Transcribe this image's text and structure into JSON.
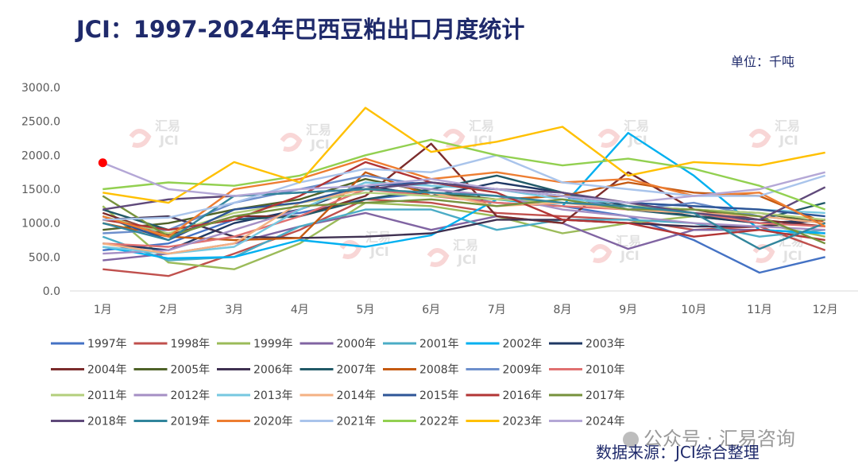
{
  "title": "JCI：1997-2024年巴西豆粕出口月度统计",
  "unit": "单位：千吨",
  "source": "数据来源：JCI综合整理",
  "watermark": {
    "text": "公众号 · 汇易咨询",
    "logo_text": "汇易",
    "logo_sub": "JCI"
  },
  "chart_data": {
    "type": "line",
    "title": "JCI：1997-2024年巴西豆粕出口月度统计",
    "ylabel": "千吨",
    "ylim": [
      0,
      3000
    ],
    "yticks": [
      "0.0",
      "500.0",
      "1000.0",
      "1500.0",
      "2000.0",
      "2500.0",
      "3000.0"
    ],
    "categories": [
      "1月",
      "2月",
      "3月",
      "4月",
      "5月",
      "6月",
      "7月",
      "8月",
      "9月",
      "10月",
      "11月",
      "12月"
    ],
    "grid": false,
    "legend": "bottom",
    "series": [
      {
        "name": "1997年",
        "color": "#4472c4",
        "values": [
          600,
          700,
          1050,
          1150,
          1350,
          1450,
          1300,
          1250,
          1100,
          750,
          270,
          500
        ]
      },
      {
        "name": "1998年",
        "color": "#c0504d",
        "values": [
          320,
          220,
          550,
          900,
          1350,
          1300,
          1150,
          1100,
          1050,
          900,
          950,
          600
        ]
      },
      {
        "name": "1999年",
        "color": "#9bbb59",
        "values": [
          1250,
          420,
          320,
          700,
          1300,
          1250,
          1100,
          850,
          1000,
          1100,
          1000,
          800
        ]
      },
      {
        "name": "2000年",
        "color": "#8064a2",
        "values": [
          450,
          550,
          700,
          950,
          1150,
          900,
          1100,
          1000,
          620,
          900,
          900,
          850
        ]
      },
      {
        "name": "2001年",
        "color": "#4bacc6",
        "values": [
          800,
          450,
          500,
          950,
          1200,
          1200,
          900,
          1050,
          1050,
          1000,
          800,
          900
        ]
      },
      {
        "name": "2002年",
        "color": "#00b0f0",
        "values": [
          650,
          480,
          500,
          750,
          650,
          820,
          1350,
          1250,
          2330,
          1700,
          900,
          850
        ]
      },
      {
        "name": "2003年",
        "color": "#1f3864",
        "values": [
          700,
          600,
          1000,
          1200,
          1550,
          1400,
          1600,
          1450,
          1250,
          1100,
          1000,
          1050
        ]
      },
      {
        "name": "2004年",
        "color": "#7b2c2c",
        "values": [
          1150,
          820,
          1100,
          1100,
          1400,
          2170,
          1100,
          1000,
          1750,
          1200,
          1050,
          950
        ]
      },
      {
        "name": "2005年",
        "color": "#4f6228",
        "values": [
          900,
          1000,
          1200,
          1350,
          1650,
          1450,
          1350,
          1300,
          1250,
          1200,
          1150,
          1000
        ]
      },
      {
        "name": "2006年",
        "color": "#3f3151",
        "values": [
          1050,
          1100,
          800,
          780,
          800,
          850,
          1050,
          1050,
          1000,
          950,
          950,
          1050
        ]
      },
      {
        "name": "2007年",
        "color": "#215967",
        "values": [
          1200,
          900,
          1050,
          1100,
          1350,
          1500,
          1700,
          1450,
          1200,
          1100,
          1050,
          1300
        ]
      },
      {
        "name": "2008年",
        "color": "#c55a11",
        "values": [
          1000,
          800,
          750,
          780,
          1750,
          1400,
          1350,
          1400,
          1600,
          1450,
          1400,
          1000
        ]
      },
      {
        "name": "2009年",
        "color": "#6d8fcc",
        "values": [
          850,
          900,
          1300,
          1500,
          1700,
          1550,
          1500,
          1400,
          1200,
          1300,
          1100,
          1000
        ]
      },
      {
        "name": "2010年",
        "color": "#e07070",
        "values": [
          700,
          650,
          800,
          1100,
          1500,
          1400,
          1300,
          1250,
          1200,
          1150,
          1000,
          950
        ]
      },
      {
        "name": "2011年",
        "color": "#b3cf7c",
        "values": [
          1100,
          850,
          1150,
          1300,
          1450,
          1400,
          1350,
          1300,
          1250,
          1200,
          1150,
          1050
        ]
      },
      {
        "name": "2012年",
        "color": "#a58fc4",
        "values": [
          550,
          600,
          900,
          1200,
          1600,
          1500,
          1400,
          1200,
          1100,
          1000,
          950,
          900
        ]
      },
      {
        "name": "2013年",
        "color": "#76c8e0",
        "values": [
          650,
          550,
          650,
          1200,
          1600,
          1550,
          1500,
          1350,
          1300,
          1250,
          1200,
          1150
        ]
      },
      {
        "name": "2014年",
        "color": "#f4b183",
        "values": [
          700,
          550,
          700,
          1300,
          1500,
          1450,
          1250,
          1300,
          1200,
          1150,
          1100,
          1000
        ]
      },
      {
        "name": "2015年",
        "color": "#2e5597",
        "values": [
          1100,
          750,
          1200,
          1300,
          1550,
          1600,
          1500,
          1400,
          1300,
          1250,
          1200,
          1100
        ]
      },
      {
        "name": "2016年",
        "color": "#b23535",
        "values": [
          1050,
          900,
          1050,
          1400,
          1900,
          1600,
          1450,
          1050,
          1000,
          800,
          900,
          750
        ]
      },
      {
        "name": "2017年",
        "color": "#76923c",
        "values": [
          1400,
          800,
          1100,
          1250,
          1300,
          1350,
          1250,
          1350,
          1200,
          1200,
          1100,
          700
        ]
      },
      {
        "name": "2018年",
        "color": "#5f497a",
        "values": [
          1200,
          1350,
          1400,
          1450,
          1500,
          1600,
          1500,
          1450,
          1300,
          1150,
          1050,
          1530
        ]
      },
      {
        "name": "2019年",
        "color": "#31859c",
        "values": [
          1000,
          750,
          1400,
          1450,
          1500,
          1450,
          1400,
          1300,
          1250,
          1150,
          620,
          1000
        ]
      },
      {
        "name": "2020年",
        "color": "#ed7d31",
        "values": [
          1100,
          800,
          1500,
          1650,
          1950,
          1650,
          1750,
          1600,
          1650,
          1400,
          1450,
          950
        ]
      },
      {
        "name": "2021年",
        "color": "#a9c4eb",
        "values": [
          1050,
          1080,
          1300,
          1600,
          1800,
          1750,
          2000,
          1600,
          1500,
          1400,
          1400,
          1700
        ]
      },
      {
        "name": "2022年",
        "color": "#92d050",
        "values": [
          1500,
          1600,
          1550,
          1700,
          2000,
          2230,
          2000,
          1850,
          1950,
          1800,
          1550,
          1200
        ]
      },
      {
        "name": "2023年",
        "color": "#ffc000",
        "values": [
          1450,
          1300,
          1900,
          1600,
          2700,
          2050,
          2200,
          2420,
          1700,
          1900,
          1850,
          2040
        ]
      },
      {
        "name": "2024年",
        "color": "#b4a7d6",
        "values": [
          1890,
          1500,
          1400,
          1500,
          1550,
          1650,
          1500,
          1400,
          1300,
          1400,
          1500,
          1750
        ]
      }
    ],
    "annotations": [
      {
        "type": "marker",
        "color": "#ff0000",
        "category": "1月",
        "value": 1890
      }
    ]
  }
}
